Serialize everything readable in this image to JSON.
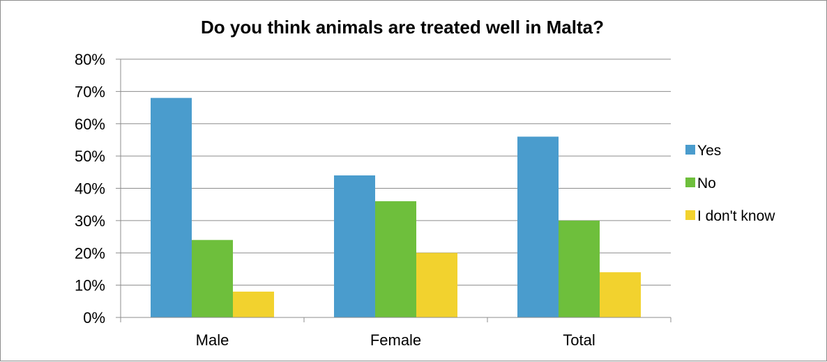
{
  "chart_data": {
    "type": "bar",
    "title": "Do you think animals are treated well in Malta?",
    "categories": [
      "Male",
      "Female",
      "Total"
    ],
    "series": [
      {
        "name": "Yes",
        "values": [
          68,
          44,
          56
        ],
        "color": "#4a9ccd"
      },
      {
        "name": "No",
        "values": [
          24,
          36,
          30
        ],
        "color": "#6ebf3c"
      },
      {
        "name": "I don't know",
        "values": [
          8,
          20,
          14
        ],
        "color": "#f2d22e"
      }
    ],
    "ylim": [
      0,
      80
    ],
    "y_ticks": [
      "0%",
      "10%",
      "20%",
      "30%",
      "40%",
      "50%",
      "60%",
      "70%",
      "80%"
    ],
    "xlabel": "",
    "ylabel": "",
    "grid": true,
    "legend_position": "right",
    "colors": {
      "gridline": "#8c8c8c",
      "axis": "#8c8c8c"
    }
  }
}
